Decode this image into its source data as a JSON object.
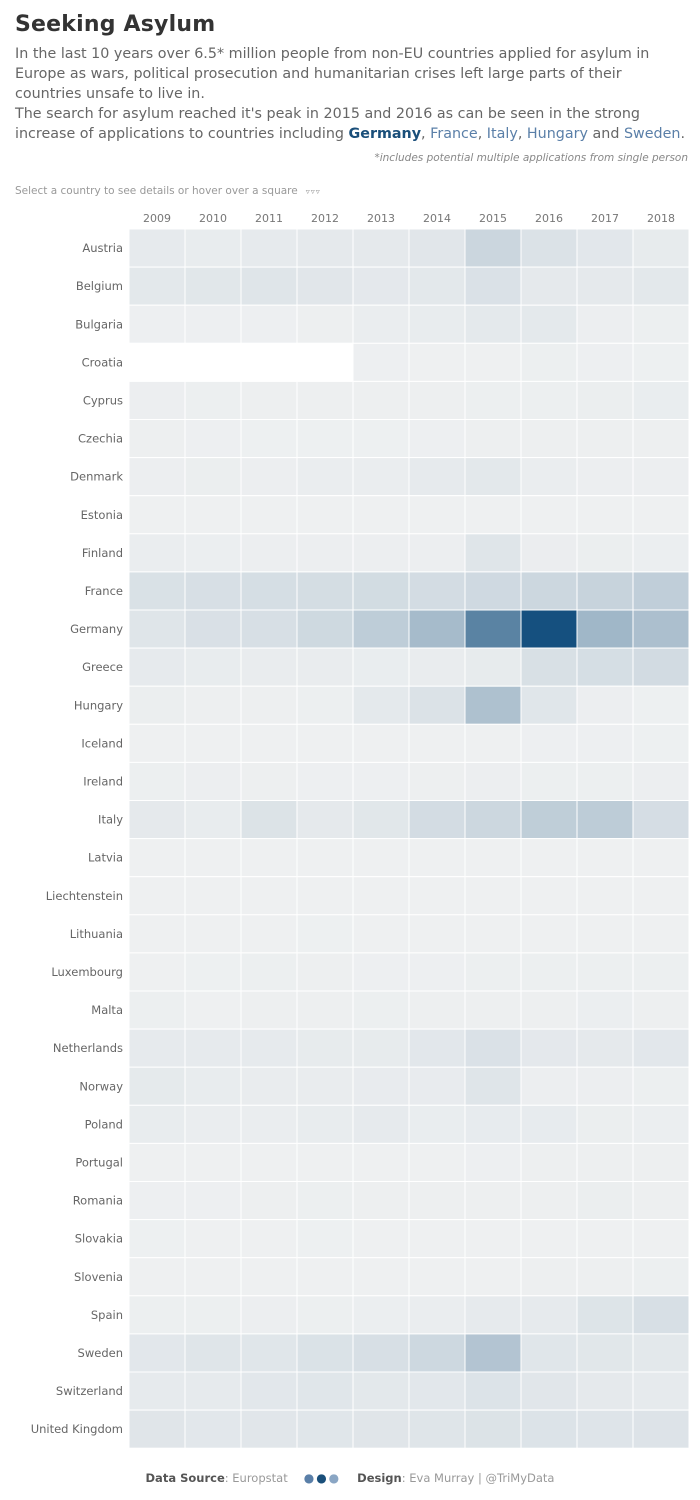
{
  "title": "Seeking Asylum",
  "intro": {
    "p1": "In the last 10 years over 6.5* million people from non-EU  countries applied for asylum in Europe as wars, political prosecution and humanitarian crises left large parts of their countries unsafe to live in.",
    "p2_prefix": "The search for asylum reached it's peak in 2015 and 2016 as can be seen in the strong increase of applications to countries including ",
    "germany": "Germany",
    "sep1": ", ",
    "france": "France",
    "sep2": ", ",
    "italy": "Italy",
    "sep3": ", ",
    "hungary": "Hungary",
    "and": " and ",
    "sweden": "Sweden",
    "end": "."
  },
  "footnote": "*includes potential multiple applications from single person",
  "instruction": "Select a country to see details or hover over a square",
  "instruction_icon": "▿▿▿",
  "footer": {
    "source_label": "Data Source",
    "source_value": ": Europstat",
    "dots": "●●●",
    "design_label": "Design",
    "design_value": ": Eva Murray | @TriMyData"
  },
  "colors": {
    "min": "#eef0f1",
    "max": "#15507f",
    "empty": "#ffffff",
    "accent": "#5a7fa8",
    "dark_accent": "#1a4f7a"
  },
  "chart_data": {
    "type": "heatmap",
    "years": [
      "2009",
      "2010",
      "2011",
      "2012",
      "2013",
      "2014",
      "2015",
      "2016",
      "2017",
      "2018"
    ],
    "countries": [
      "Austria",
      "Belgium",
      "Bulgaria",
      "Croatia",
      "Cyprus",
      "Czechia",
      "Denmark",
      "Estonia",
      "Finland",
      "France",
      "Germany",
      "Greece",
      "Hungary",
      "Iceland",
      "Ireland",
      "Italy",
      "Latvia",
      "Liechtenstein",
      "Lithuania",
      "Luxembourg",
      "Malta",
      "Netherlands",
      "Norway",
      "Poland",
      "Portugal",
      "Romania",
      "Slovakia",
      "Slovenia",
      "Spain",
      "Sweden",
      "Switzerland",
      "United Kingdom"
    ],
    "values": [
      [
        15500,
        11000,
        14400,
        17400,
        17500,
        28000,
        88000,
        42000,
        24500,
        13700
      ],
      [
        22800,
        26000,
        32000,
        28000,
        21000,
        22800,
        44700,
        18300,
        18300,
        22500
      ],
      [
        850,
        1000,
        890,
        1400,
        7100,
        11000,
        20200,
        19400,
        3700,
        2500
      ],
      [
        null,
        null,
        null,
        null,
        1100,
        450,
        210,
        2200,
        980,
        800
      ],
      [
        3200,
        2900,
        1800,
        1600,
        1300,
        1700,
        2300,
        2900,
        4600,
        7800
      ],
      [
        1300,
        980,
        750,
        740,
        710,
        1150,
        1500,
        1500,
        1450,
        1700
      ],
      [
        3800,
        5100,
        3900,
        6200,
        7200,
        14800,
        21300,
        6200,
        3500,
        3500
      ],
      [
        40,
        35,
        65,
        75,
        100,
        150,
        230,
        175,
        190,
        95
      ],
      [
        6000,
        4000,
        3100,
        3100,
        3200,
        3600,
        32300,
        5600,
        5000,
        4500
      ],
      [
        47600,
        52700,
        57300,
        61400,
        66300,
        64300,
        76200,
        84300,
        99300,
        120400
      ],
      [
        33000,
        48600,
        53300,
        77700,
        126700,
        202800,
        476600,
        745200,
        222600,
        184200
      ],
      [
        15900,
        10300,
        9300,
        9600,
        8200,
        9400,
        13200,
        51100,
        58600,
        66900
      ],
      [
        4700,
        2100,
        1700,
        2200,
        18900,
        42800,
        177100,
        29400,
        3400,
        670
      ],
      [
        40,
        50,
        75,
        115,
        170,
        170,
        370,
        1130,
        1080,
        800
      ],
      [
        2700,
        3500,
        1300,
        1000,
        950,
        1450,
        3300,
        2250,
        2900,
        3670
      ],
      [
        17600,
        10000,
        40300,
        17400,
        26600,
        64600,
        83500,
        122100,
        128900,
        59900
      ],
      [
        60,
        65,
        340,
        200,
        195,
        375,
        330,
        350,
        355,
        185
      ],
      [
        300,
        110,
        70,
        75,
        115,
        65,
        150,
        80,
        150,
        165
      ],
      [
        450,
        370,
        525,
        645,
        400,
        440,
        320,
        430,
        545,
        405
      ],
      [
        480,
        780,
        2150,
        2050,
        1070,
        1150,
        2500,
        2200,
        2400,
        2300
      ],
      [
        2600,
        180,
        1900,
        2100,
        2250,
        1350,
        1850,
        1930,
        4000,
        2130
      ],
      [
        14900,
        15100,
        14600,
        13100,
        13100,
        24500,
        44900,
        20900,
        18200,
        24000
      ],
      [
        17200,
        10100,
        9000,
        9700,
        11900,
        11400,
        31100,
        3500,
        3600,
        2700
      ],
      [
        10600,
        6500,
        6900,
        10800,
        15200,
        8000,
        12200,
        12300,
        5000,
        4100
      ],
      [
        140,
        160,
        275,
        295,
        505,
        440,
        895,
        1460,
        1750,
        1285
      ],
      [
        960,
        890,
        1720,
        2510,
        1500,
        1550,
        1260,
        1880,
        4820,
        2135
      ],
      [
        820,
        540,
        490,
        730,
        440,
        330,
        330,
        145,
        160,
        175
      ],
      [
        200,
        250,
        370,
        300,
        270,
        385,
        275,
        1310,
        1475,
        2875
      ],
      [
        3000,
        2700,
        3400,
        2600,
        4500,
        5900,
        14800,
        15800,
        36600,
        54100
      ],
      [
        24200,
        31800,
        29700,
        43900,
        54300,
        81200,
        162500,
        28900,
        26300,
        21600
      ],
      [
        16000,
        15600,
        23900,
        28600,
        21300,
        23800,
        39500,
        27200,
        18000,
        15200
      ],
      [
        30700,
        24400,
        26900,
        28800,
        30600,
        32800,
        40200,
        39700,
        34400,
        37300
      ]
    ]
  }
}
